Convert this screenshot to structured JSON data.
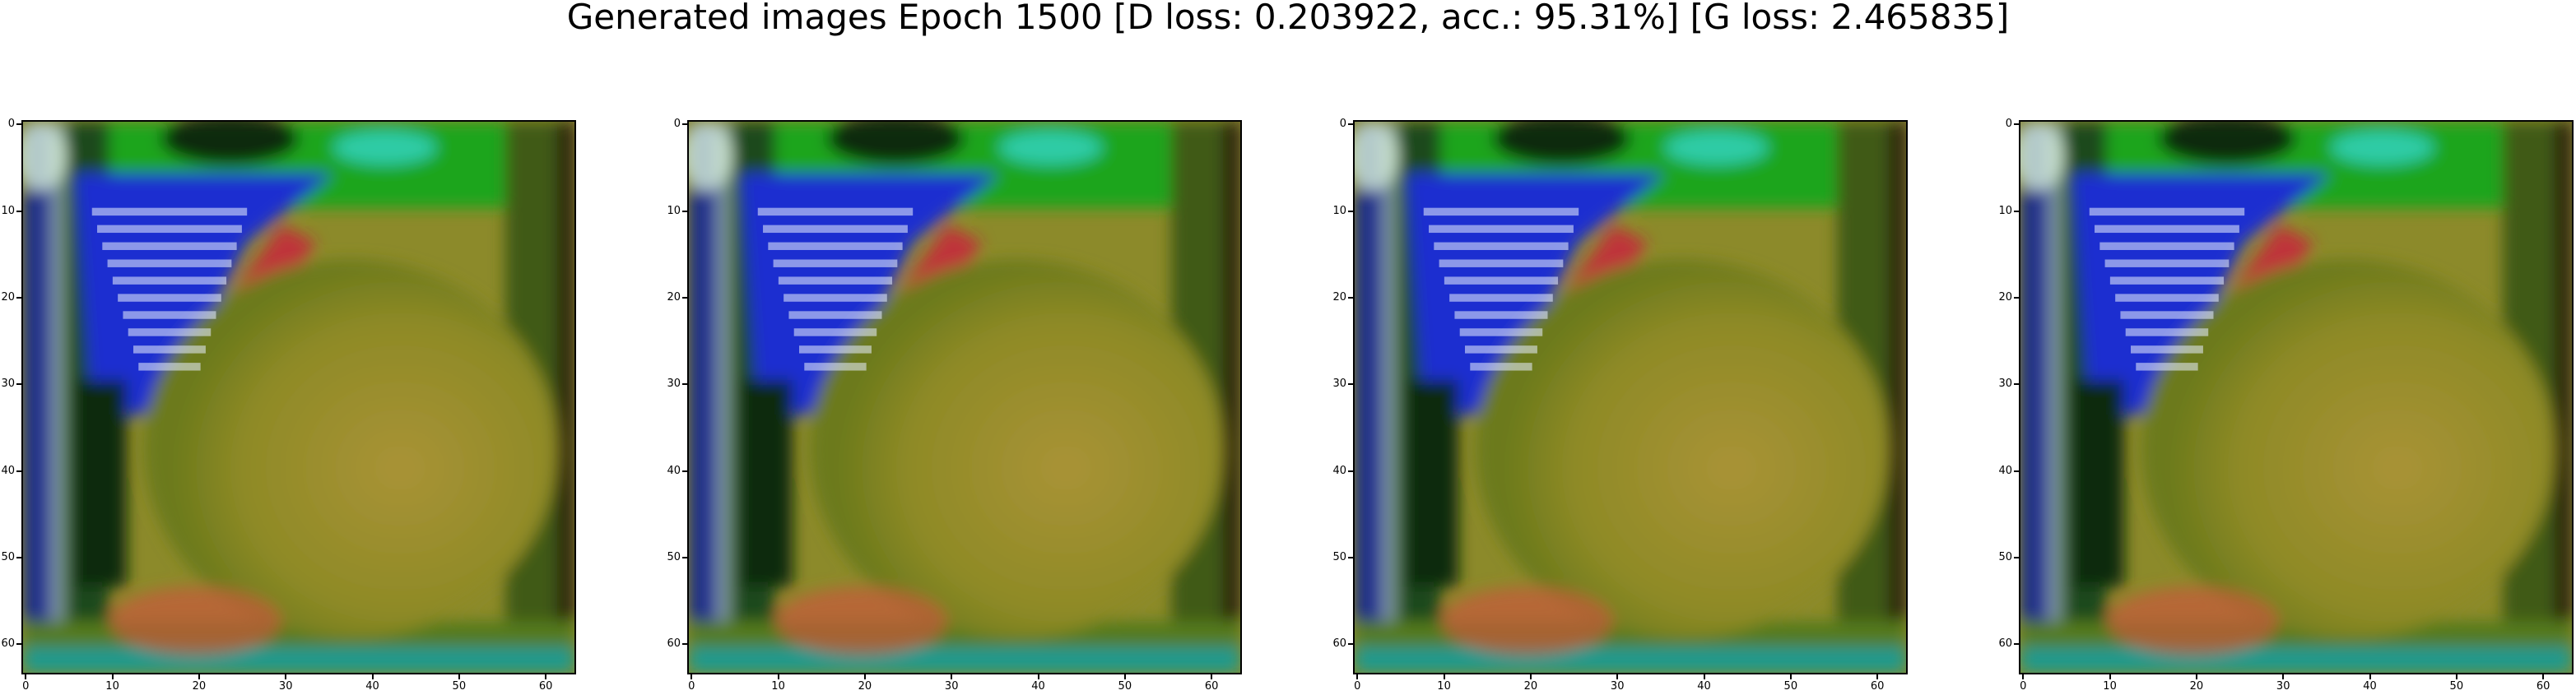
{
  "title": "Generated images Epoch 1500 [D loss: 0.203922, acc.: 95.31%] [G loss: 2.465835]",
  "panels": [
    {
      "name": "generated-image-1"
    },
    {
      "name": "generated-image-2"
    },
    {
      "name": "generated-image-3"
    },
    {
      "name": "generated-image-4"
    }
  ],
  "axes": {
    "x_ticks": [
      "0",
      "10",
      "20",
      "30",
      "40",
      "50",
      "60"
    ],
    "y_ticks": [
      "0",
      "10",
      "20",
      "30",
      "40",
      "50",
      "60"
    ],
    "tick_values": [
      0,
      10,
      20,
      30,
      40,
      50,
      60
    ],
    "range": [
      -0.5,
      63.5
    ]
  },
  "colors": {
    "background": "#ffffff",
    "image_base": "#8c8a2a",
    "image_green": "#1fa51f",
    "image_blue": "#1c2fd0",
    "image_red": "#c8243c",
    "image_cyan": "#33d6c8"
  }
}
